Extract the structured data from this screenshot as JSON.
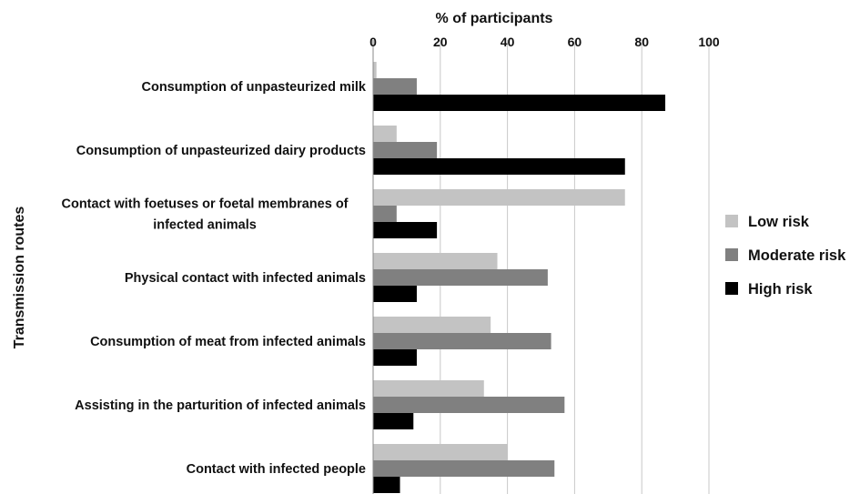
{
  "chart_data": {
    "type": "bar",
    "orientation": "horizontal",
    "title": "",
    "xlabel": "% of participants",
    "ylabel": "Transmission routes",
    "xlim": [
      0,
      100
    ],
    "xticks": [
      0,
      20,
      40,
      60,
      80,
      100
    ],
    "grid": true,
    "legend_position": "right",
    "categories": [
      [
        "Consumption of unpasteurized milk"
      ],
      [
        "Consumption of unpasteurized dairy products"
      ],
      [
        "Contact with foetuses or foetal membranes of",
        "infected animals"
      ],
      [
        "Physical contact with infected animals"
      ],
      [
        "Consumption of meat from infected animals"
      ],
      [
        "Assisting in the parturition of infected animals"
      ],
      [
        "Contact with infected people"
      ]
    ],
    "series": [
      {
        "name": "Low risk",
        "color": "#c3c3c3",
        "values": [
          1,
          7,
          75,
          37,
          35,
          33,
          40
        ]
      },
      {
        "name": "Moderate risk",
        "color": "#808080",
        "values": [
          13,
          19,
          7,
          52,
          53,
          57,
          54
        ]
      },
      {
        "name": "High risk",
        "color": "#000000",
        "values": [
          87,
          75,
          19,
          13,
          13,
          12,
          8
        ]
      }
    ]
  }
}
